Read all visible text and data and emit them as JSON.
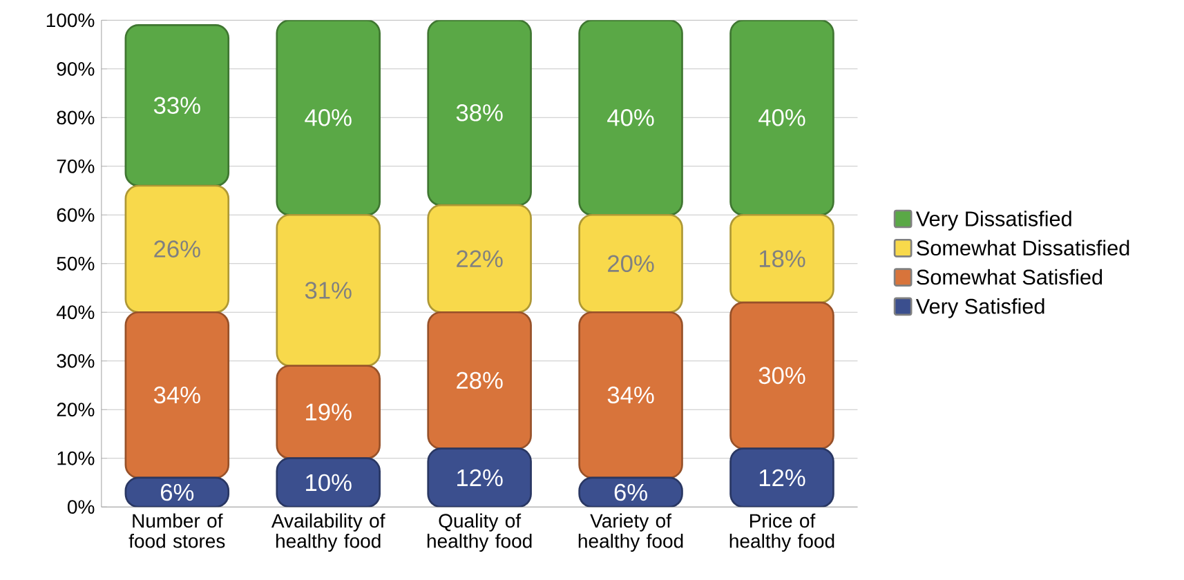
{
  "chart_data": {
    "type": "bar",
    "stacked": true,
    "categories": [
      "Number of food stores",
      "Availability of healthy food",
      "Quality of healthy food",
      "Variety of healthy food",
      "Price of healthy food"
    ],
    "series": [
      {
        "name": "Very Satisfied",
        "color": "#3b4f8e",
        "values": [
          6,
          10,
          12,
          6,
          12
        ],
        "value_labels": [
          "6%",
          "10%",
          "12%",
          "6%",
          "12%"
        ]
      },
      {
        "name": "Somewhat Satisfied",
        "color": "#d8743b",
        "values": [
          34,
          19,
          28,
          34,
          30
        ],
        "value_labels": [
          "34%",
          "19%",
          "28%",
          "34%",
          "30%"
        ]
      },
      {
        "name": "Somewhat Dissatisfied",
        "color": "#f8d94b",
        "values": [
          26,
          31,
          22,
          20,
          18
        ],
        "value_labels": [
          "26%",
          "31%",
          "22%",
          "20%",
          "18%"
        ]
      },
      {
        "name": "Very Dissatisfied",
        "color": "#5aa846",
        "values": [
          33,
          40,
          38,
          40,
          40
        ],
        "value_labels": [
          "33%",
          "40%",
          "38%",
          "40%",
          "40%"
        ]
      }
    ],
    "ylim": [
      0,
      100
    ],
    "yticks": [
      {
        "value": 0,
        "label": "0%"
      },
      {
        "value": 10,
        "label": "10%"
      },
      {
        "value": 20,
        "label": "20%"
      },
      {
        "value": 30,
        "label": "30%"
      },
      {
        "value": 40,
        "label": "40%"
      },
      {
        "value": 50,
        "label": "50%"
      },
      {
        "value": 60,
        "label": "60%"
      },
      {
        "value": 70,
        "label": "70%"
      },
      {
        "value": 80,
        "label": "80%"
      },
      {
        "value": 90,
        "label": "90%"
      },
      {
        "value": 100,
        "label": "100%"
      }
    ],
    "grid": "y",
    "legend": "right"
  }
}
